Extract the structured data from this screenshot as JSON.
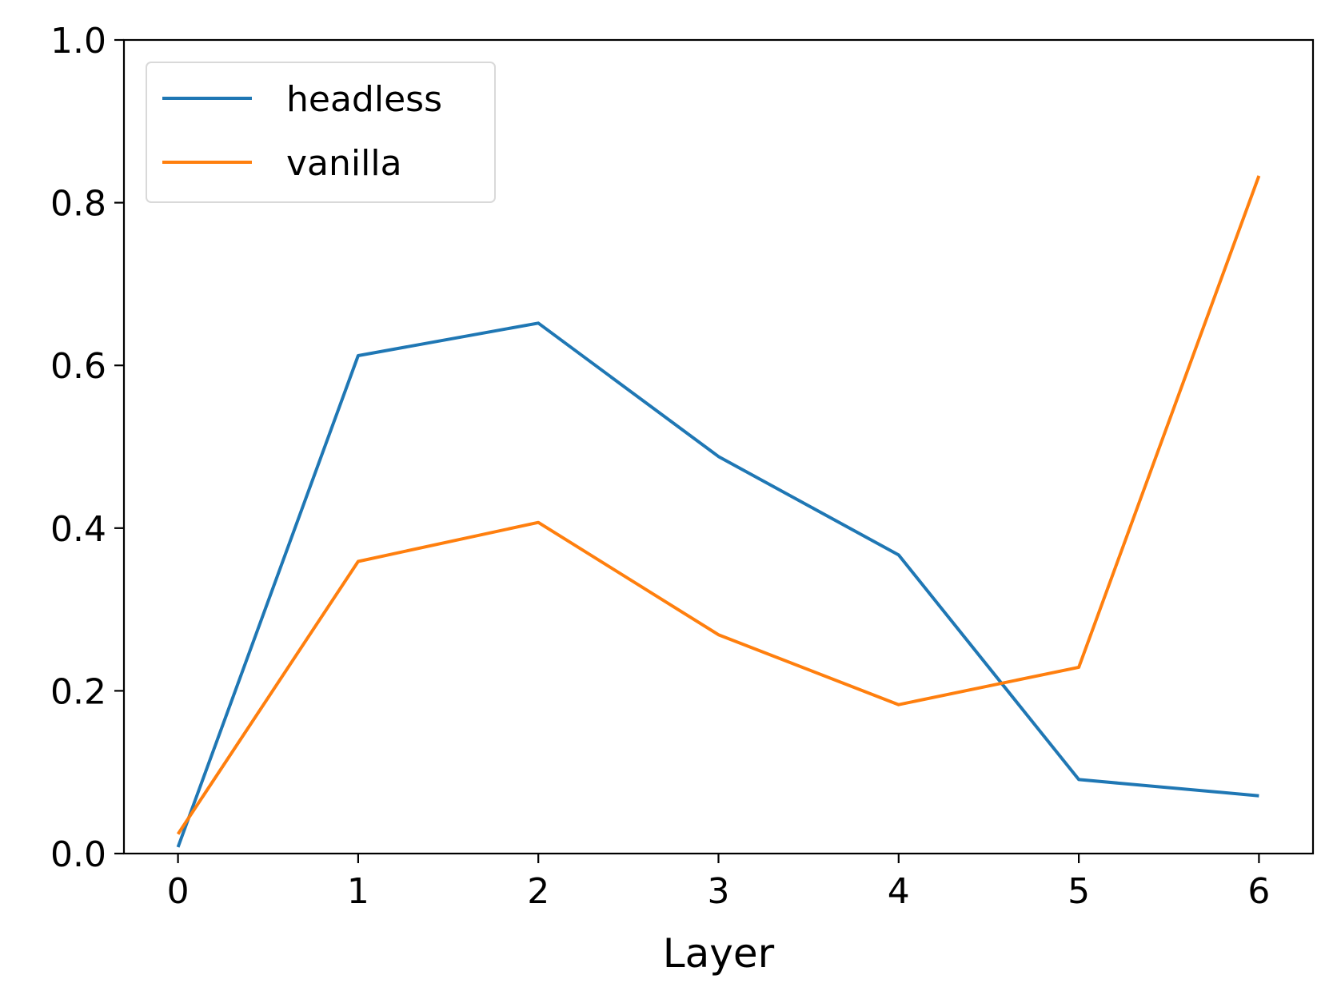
{
  "chart_data": {
    "type": "line",
    "title": "",
    "xlabel": "Layer",
    "ylabel": "",
    "x": [
      0,
      1,
      2,
      3,
      4,
      5,
      6
    ],
    "xlim": [
      -0.3,
      6.3
    ],
    "ylim": [
      0.0,
      1.0
    ],
    "x_ticks": [
      "0",
      "1",
      "2",
      "3",
      "4",
      "5",
      "6"
    ],
    "y_ticks": [
      "0.0",
      "0.2",
      "0.4",
      "0.6",
      "0.8",
      "1.0"
    ],
    "grid": false,
    "legend_position": "top-left",
    "series": [
      {
        "name": "headless",
        "color": "#1f77b4",
        "values": [
          0.008,
          0.612,
          0.652,
          0.488,
          0.367,
          0.091,
          0.071
        ]
      },
      {
        "name": "vanilla",
        "color": "#ff7f0e",
        "values": [
          0.024,
          0.359,
          0.407,
          0.269,
          0.183,
          0.229,
          0.833
        ]
      }
    ]
  }
}
